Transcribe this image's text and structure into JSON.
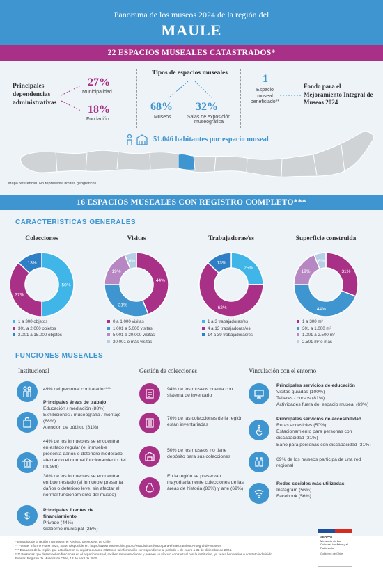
{
  "header": {
    "subtitle": "Panorama de los museos 2024 de la región del",
    "region": "MAULE"
  },
  "band1": "22 ESPACIOS MUSEALES CATASTRADOS*",
  "admin": {
    "title": "Principales dependencias administrativas",
    "items": [
      {
        "pct": "27%",
        "label": "Municipalidad"
      },
      {
        "pct": "18%",
        "label": "Fundación"
      }
    ]
  },
  "tipos": {
    "title": "Tipos de espacios museales",
    "items": [
      {
        "pct": "68%",
        "label": "Museos"
      },
      {
        "pct": "32%",
        "label": "Salas de exposición museográfica"
      }
    ]
  },
  "fondo": {
    "count": "1",
    "label": "Espacio museal beneficiado**",
    "title": "Fondo para el Mejoramiento Integral de Museos 2024"
  },
  "habitantes": "51.046 habitantes por espacio museal",
  "map_note": "Mapa referencial. No representa límites geográficos",
  "band2": "16 ESPACIOS MUSEALES CON REGISTRO COMPLETO***",
  "caracteristicas": "CARACTERÍSTICAS GENERALES",
  "charts": [
    {
      "title": "Colecciones",
      "type": "pie",
      "slices": [
        {
          "label": "1 a 300 objetos",
          "value": 50,
          "color": "#3fb5e8"
        },
        {
          "label": "301 a 2.000 objetos",
          "value": 37,
          "color": "#a93087"
        },
        {
          "label": "2.001 a 15.000 objetos",
          "value": 13,
          "color": "#2e7fc6"
        }
      ],
      "labels": [
        "50%",
        "37%",
        "13%"
      ]
    },
    {
      "title": "Visitas",
      "type": "pie",
      "slices": [
        {
          "label": "0 a 1.000 visitas",
          "value": 44,
          "color": "#a93087"
        },
        {
          "label": "1.001 a 5.000 visitas",
          "value": 31,
          "color": "#3f95cf"
        },
        {
          "label": "5.001 a 20.000 visitas",
          "value": 19,
          "color": "#b687c2"
        },
        {
          "label": "20.001 o más visitas",
          "value": 6,
          "color": "#b7cfe6"
        }
      ],
      "labels": [
        "44%",
        "31%",
        "19%",
        "6%"
      ]
    },
    {
      "title": "Trabajadoras/es",
      "type": "pie",
      "slices": [
        {
          "label": "1 a 3 trabajadoras/es",
          "value": 25,
          "color": "#3fb5e8"
        },
        {
          "label": "4 a 13 trabajadoras/es",
          "value": 62,
          "color": "#a93087"
        },
        {
          "label": "14 a 39 trabajadoras/es",
          "value": 13,
          "color": "#2e7fc6"
        }
      ],
      "labels": [
        "25%",
        "62%",
        "13%"
      ]
    },
    {
      "title": "Superficie construida",
      "type": "pie",
      "slices": [
        {
          "label": "1 a 300 m²",
          "value": 31,
          "color": "#a93087"
        },
        {
          "label": "301 a 1.000 m²",
          "value": 44,
          "color": "#3f95cf"
        },
        {
          "label": "1.001 a 2.500 m²",
          "value": 19,
          "color": "#b687c2"
        },
        {
          "label": "2.501 m² o más",
          "value": 6,
          "color": "#b7cfe6"
        }
      ],
      "labels": [
        "31%",
        "44%",
        "19%",
        "6%"
      ]
    }
  ],
  "funciones": "FUNCIONES MUSEALES",
  "col1": {
    "head": "Institucional",
    "personal": "49% del personal contratado****",
    "areas_title": "Principales áreas de trabajo",
    "areas": [
      "Educación / mediación (88%)",
      "Exhibiciones / museografía / montaje (88%)",
      "Atención de público (81%)"
    ],
    "inmuebles1": "44% de los inmuebles se encuentran en estado regular (el inmueble presenta daños o deterioro moderado, afectando el normal funcionamiento del museo)",
    "inmuebles2": "38% de los inmuebles se encuentran en buen estado (el inmueble presenta daños o deterioro leve, sin afectar el normal funcionamiento del museo)",
    "fuentes_title": "Principales fuentes de financiamiento",
    "fuentes": [
      "Privado (44%)",
      "Gobierno municipal (25%)"
    ]
  },
  "col2": {
    "head": "Gestión de colecciones",
    "items": [
      "94% de los museos cuenta con sistema de inventario",
      "70% de las colecciones de la región están inventariadas",
      "50% de los museos no tiene depósito para sus colecciones",
      "En la región se preservan mayoritariamente colecciones de las áreas de historia (88%) y arte (69%)"
    ]
  },
  "col3": {
    "head": "Vinculación con el entorno",
    "edu_title": "Principales servicios de educación",
    "edu": [
      "Visitas guiadas (100%)",
      "Talleres / cursos (81%)",
      "Actividades fuera del espacio museal (69%)"
    ],
    "acc_title": "Principales servicios de accesibilidad",
    "acc": [
      "Rutas accesibles (50%)",
      "Estacionamiento para personas con discapacidad (31%)",
      "Baño para personas con discapacidad (31%)"
    ],
    "red": "69% de los museos participa de una red regional",
    "redes_title": "Redes sociales más utilizadas",
    "redes": [
      "Instagram (56%)",
      "Facebook (56%)"
    ]
  },
  "footnotes": [
    "* Espacios de la región inscritos en el Registro de Museos de Chile.",
    "** Fuente: Informe FMIM 2024, SNM. Disponible en: https://www.museoschile.gob.cl/estadisticas-fondo-para-el-mejoramiento-integral-de-museos",
    "*** Espacios de la región que actualizaron su registro durante 2023 con la información correspondiente al período 1 de enero a 31 de diciembre de 2024.",
    "**** Personas que desempeñan funciones en el espacio museal, reciben remuneraciones y poseen un vínculo contractual con la institución, ya sea a honorarios o contrato indefinido.",
    "Fuente: Registro de Museos de Chile, 13 de abril de 2025."
  ],
  "logo": {
    "name": "SERPAT",
    "text": "Ministerio de las Culturas, las Artes y el Patrimonio",
    "gov": "Gobierno de Chile"
  }
}
